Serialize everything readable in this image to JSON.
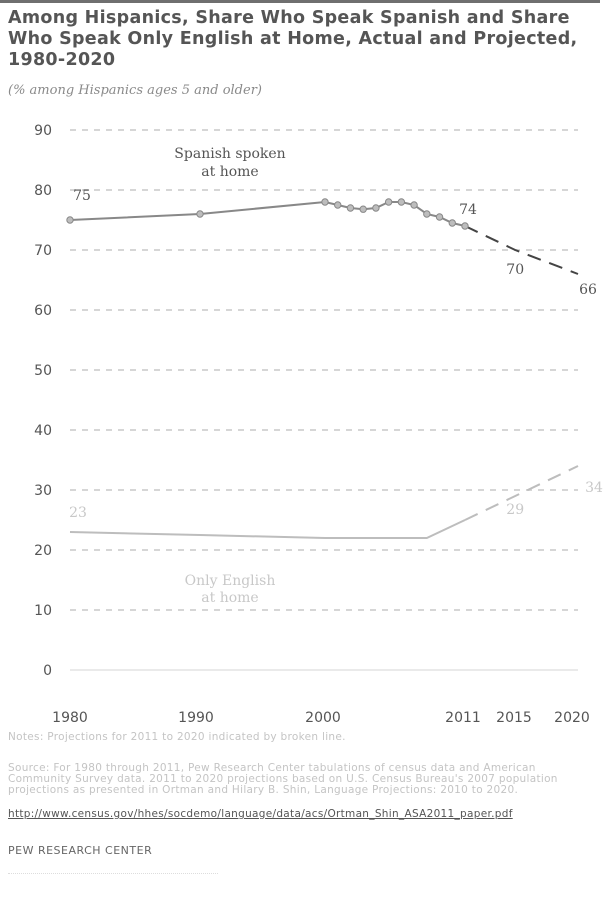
{
  "header": {
    "title": "Among Hispanics, Share Who Speak Spanish and Share Who Speak Only English at Home, Actual and Projected, 1980-2020",
    "subtitle": "(% among Hispanics ages 5 and older)"
  },
  "chart_data": {
    "type": "line",
    "title": "Among Hispanics, Share Who Speak Spanish and Share Who Speak Only English at Home, Actual and Projected, 1980-2020",
    "subtitle": "(% among Hispanics ages 5 and older)",
    "ylim": [
      0,
      90
    ],
    "yticks": [
      0,
      10,
      20,
      30,
      40,
      50,
      60,
      70,
      80,
      90
    ],
    "xticks": [
      1980,
      1990,
      2000,
      2011,
      2015,
      2020
    ],
    "grid": true,
    "series": [
      {
        "name": "Spanish spoken at home",
        "color": "#888888",
        "actual": [
          {
            "x": 1980,
            "y": 75
          },
          {
            "x": 1990,
            "y": 76
          },
          {
            "x": 2000,
            "y": 78
          },
          {
            "x": 2001,
            "y": 77.5
          },
          {
            "x": 2002,
            "y": 77
          },
          {
            "x": 2003,
            "y": 76.8
          },
          {
            "x": 2004,
            "y": 77
          },
          {
            "x": 2005,
            "y": 78
          },
          {
            "x": 2006,
            "y": 78
          },
          {
            "x": 2007,
            "y": 77.5
          },
          {
            "x": 2008,
            "y": 76
          },
          {
            "x": 2009,
            "y": 75.5
          },
          {
            "x": 2010,
            "y": 74.5
          },
          {
            "x": 2011,
            "y": 74
          }
        ],
        "projected": [
          {
            "x": 2011,
            "y": 74
          },
          {
            "x": 2015,
            "y": 70
          },
          {
            "x": 2020,
            "y": 66
          }
        ],
        "labels": [
          {
            "x": 1980,
            "y": 75,
            "text": "75"
          },
          {
            "x": 2011,
            "y": 74,
            "text": "74"
          },
          {
            "x": 2015,
            "y": 70,
            "text": "70"
          },
          {
            "x": 2020,
            "y": 66,
            "text": "66"
          }
        ]
      },
      {
        "name": "Only English at home",
        "color": "#bdbdbd",
        "actual": [
          {
            "x": 1980,
            "y": 23
          },
          {
            "x": 1990,
            "y": 22.5
          },
          {
            "x": 2000,
            "y": 22
          },
          {
            "x": 2005,
            "y": 22
          },
          {
            "x": 2008,
            "y": 22
          },
          {
            "x": 2011,
            "y": 25
          }
        ],
        "projected": [
          {
            "x": 2011,
            "y": 25
          },
          {
            "x": 2015,
            "y": 29
          },
          {
            "x": 2020,
            "y": 34
          }
        ],
        "labels": [
          {
            "x": 1980,
            "y": 23,
            "text": "23"
          },
          {
            "x": 2015,
            "y": 29,
            "text": "29"
          },
          {
            "x": 2020,
            "y": 34,
            "text": "34"
          }
        ]
      }
    ],
    "annotations": [
      {
        "text": "Spanish spoken",
        "series": 0
      },
      {
        "text": "at home",
        "series": 0
      },
      {
        "text": "Only English",
        "series": 1
      },
      {
        "text": "at home",
        "series": 1
      }
    ]
  },
  "footer": {
    "notes": "Notes: Projections for 2011 to 2020 indicated by broken line.",
    "source": "Source: For 1980 through 2011, Pew Research Center tabulations of census data and American Community Survey data. 2011 to 2020 projections based on U.S. Census Bureau's 2007 population projections as presented in Ortman and Hilary B. Shin, Language Projections: 2010 to 2020.",
    "url": "http://www.census.gov/hhes/socdemo/language/data/acs/Ortman_Shin_ASA2011_paper.pdf",
    "credit": "PEW RESEARCH CENTER"
  }
}
